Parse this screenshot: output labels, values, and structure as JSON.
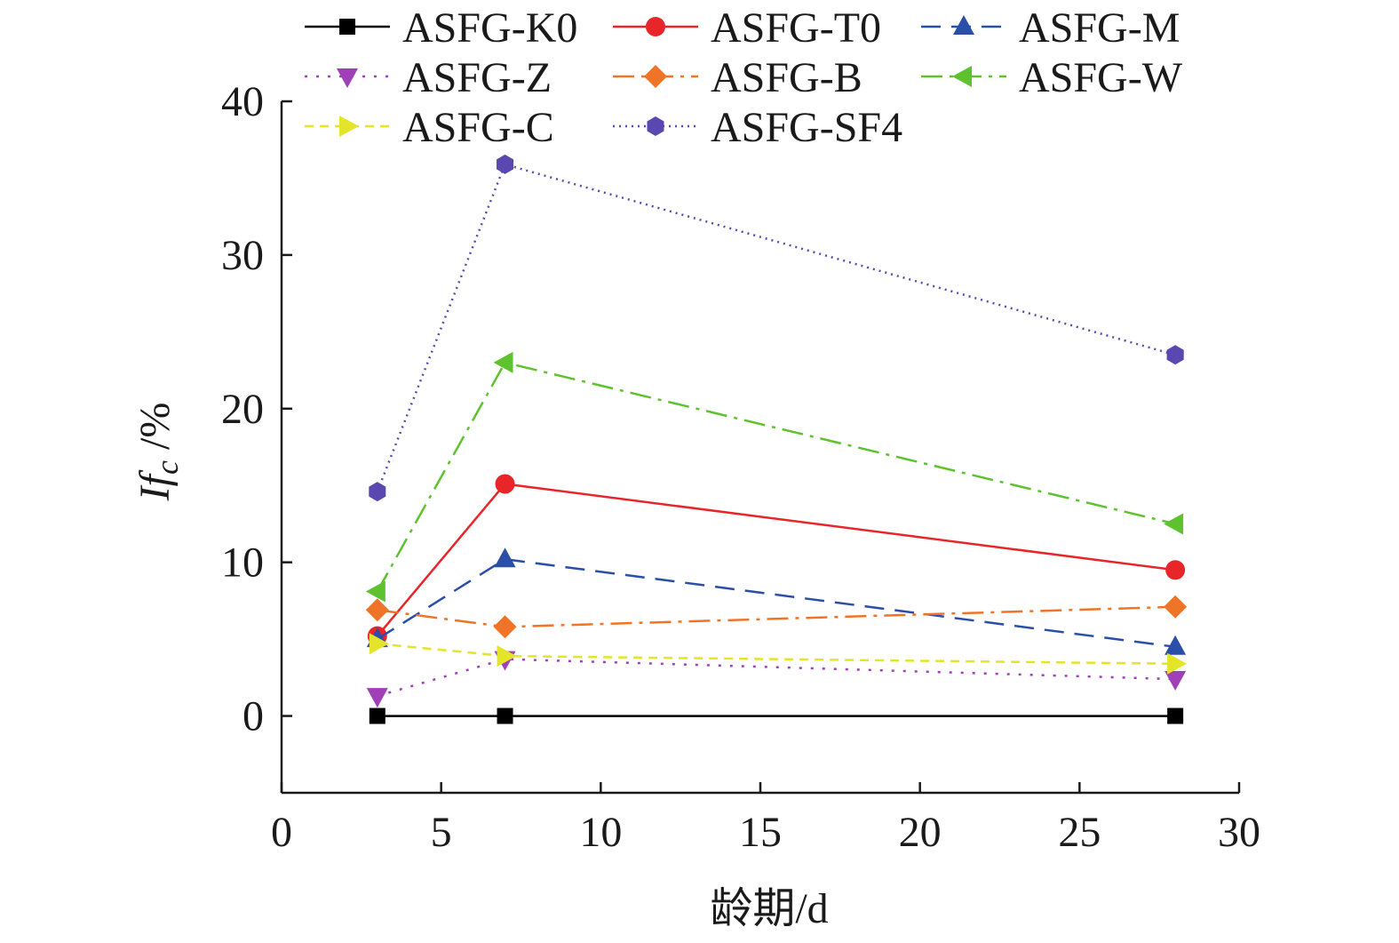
{
  "chart_data": {
    "type": "line",
    "xlabel": "龄期/d",
    "ylabel_main": "If",
    "ylabel_sub": "c",
    "ylabel_unit": " /%",
    "xlim": [
      0,
      30
    ],
    "ylim": [
      -5,
      40
    ],
    "xticks": [
      "0",
      "5",
      "10",
      "15",
      "20",
      "25",
      "30"
    ],
    "yticks": [
      "0",
      "10",
      "20",
      "30",
      "40"
    ],
    "x": [
      3,
      7,
      28
    ],
    "legend_position": "top",
    "series": [
      {
        "name": "ASFG-K0",
        "values": [
          0,
          0,
          0
        ],
        "color": "#000000",
        "marker": "square",
        "dash": "solid"
      },
      {
        "name": "ASFG-T0",
        "values": [
          5.2,
          15.1,
          9.5
        ],
        "color": "#e8262a",
        "marker": "circle",
        "dash": "solid"
      },
      {
        "name": "ASFG-M",
        "values": [
          5.0,
          10.2,
          4.5
        ],
        "color": "#2a4fa8",
        "marker": "triangle-up",
        "dash": "dash"
      },
      {
        "name": "ASFG-Z",
        "values": [
          1.3,
          3.7,
          2.4
        ],
        "color": "#a040b8",
        "marker": "triangle-down",
        "dash": "dot"
      },
      {
        "name": "ASFG-B",
        "values": [
          6.9,
          5.8,
          7.1
        ],
        "color": "#f07428",
        "marker": "diamond",
        "dash": "dashdot"
      },
      {
        "name": "ASFG-W",
        "values": [
          8.1,
          23.0,
          12.5
        ],
        "color": "#5ec22e",
        "marker": "triangle-left",
        "dash": "dashdot"
      },
      {
        "name": "ASFG-C",
        "values": [
          4.7,
          3.9,
          3.4
        ],
        "color": "#e4e42a",
        "marker": "triangle-right",
        "dash": "shortdash"
      },
      {
        "name": "ASFG-SF4",
        "values": [
          14.6,
          35.9,
          23.5
        ],
        "color": "#5a48b0",
        "marker": "hexagon",
        "dash": "finedot"
      }
    ]
  }
}
